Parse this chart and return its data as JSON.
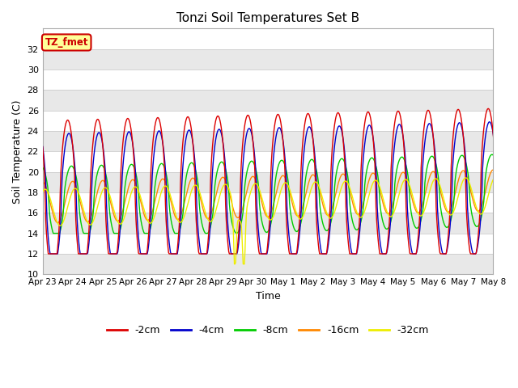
{
  "title": "Tonzi Soil Temperatures Set B",
  "xlabel": "Time",
  "ylabel": "Soil Temperature (C)",
  "ylim": [
    10,
    34
  ],
  "yticks": [
    10,
    12,
    14,
    16,
    18,
    20,
    22,
    24,
    26,
    28,
    30,
    32
  ],
  "annotation_text": "TZ_fmet",
  "annotation_color": "#cc0000",
  "annotation_bg": "#ffff99",
  "annotation_border": "#cc0000",
  "line_colors": {
    "-2cm": "#dd0000",
    "-4cm": "#0000cc",
    "-8cm": "#00cc00",
    "-16cm": "#ff8800",
    "-32cm": "#eeee00"
  },
  "legend_labels": [
    "-2cm",
    "-4cm",
    "-8cm",
    "-16cm",
    "-32cm"
  ],
  "background_color": "#ffffff",
  "band_color": "#e8e8e8",
  "x_tick_labels": [
    "Apr 23",
    "Apr 24",
    "Apr 25",
    "Apr 26",
    "Apr 27",
    "Apr 28",
    "Apr 29",
    "Apr 30",
    "May 1",
    "May 2",
    "May 3",
    "May 4",
    "May 5",
    "May 6",
    "May 7",
    "May 8"
  ]
}
